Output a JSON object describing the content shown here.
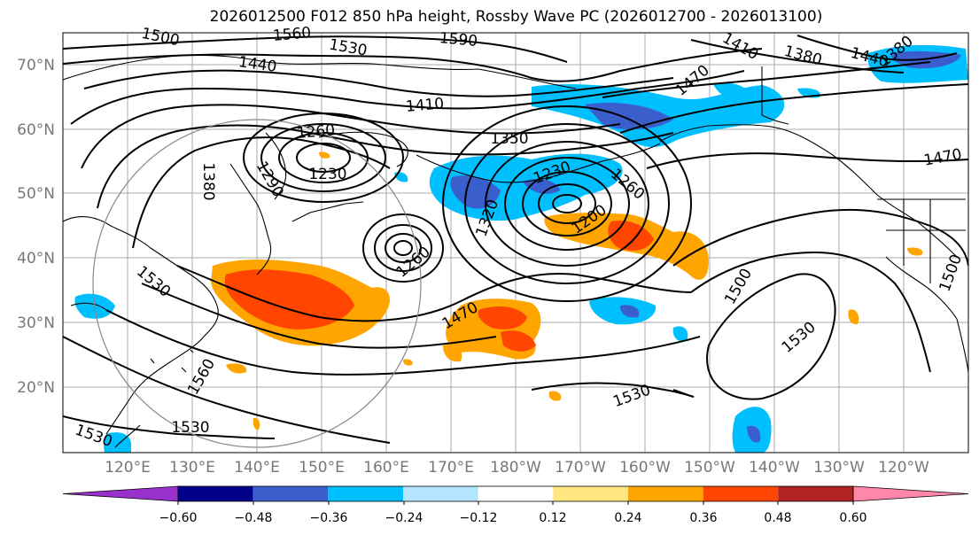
{
  "title": "2026012500 F012 850 hPa height, Rossby Wave PC (2026012700 - 2026013100)",
  "lat_labels": [
    "70°N",
    "60°N",
    "50°N",
    "40°N",
    "30°N",
    "20°N"
  ],
  "lon_labels": [
    "120°E",
    "130°E",
    "140°E",
    "150°E",
    "160°E",
    "170°E",
    "180°W",
    "170°W",
    "160°W",
    "150°W",
    "140°W",
    "130°W",
    "120°W"
  ],
  "contour_labels": [
    "1500",
    "1560",
    "1590",
    "1530",
    "1440",
    "1410",
    "1350",
    "1260",
    "1230",
    "1380",
    "1290",
    "1470",
    "1320",
    "1200",
    "1230",
    "1260",
    "1260",
    "1530",
    "1470",
    "1560",
    "1530",
    "1530",
    "1530",
    "1500",
    "1530",
    "1500",
    "1410",
    "1380",
    "1440",
    "1470",
    "1380"
  ],
  "colorbar": {
    "ticks": [
      "−0.60",
      "−0.48",
      "−0.36",
      "−0.24",
      "−0.12",
      "0.12",
      "0.24",
      "0.36",
      "0.48",
      "0.60"
    ],
    "colors": [
      "#9932cc",
      "#00008b",
      "#3a5fcd",
      "#00bfff",
      "#b3e5ff",
      "#ffffff",
      "#ffe680",
      "#ffa500",
      "#ff4500",
      "#b22222",
      "#ff88aa"
    ]
  }
}
